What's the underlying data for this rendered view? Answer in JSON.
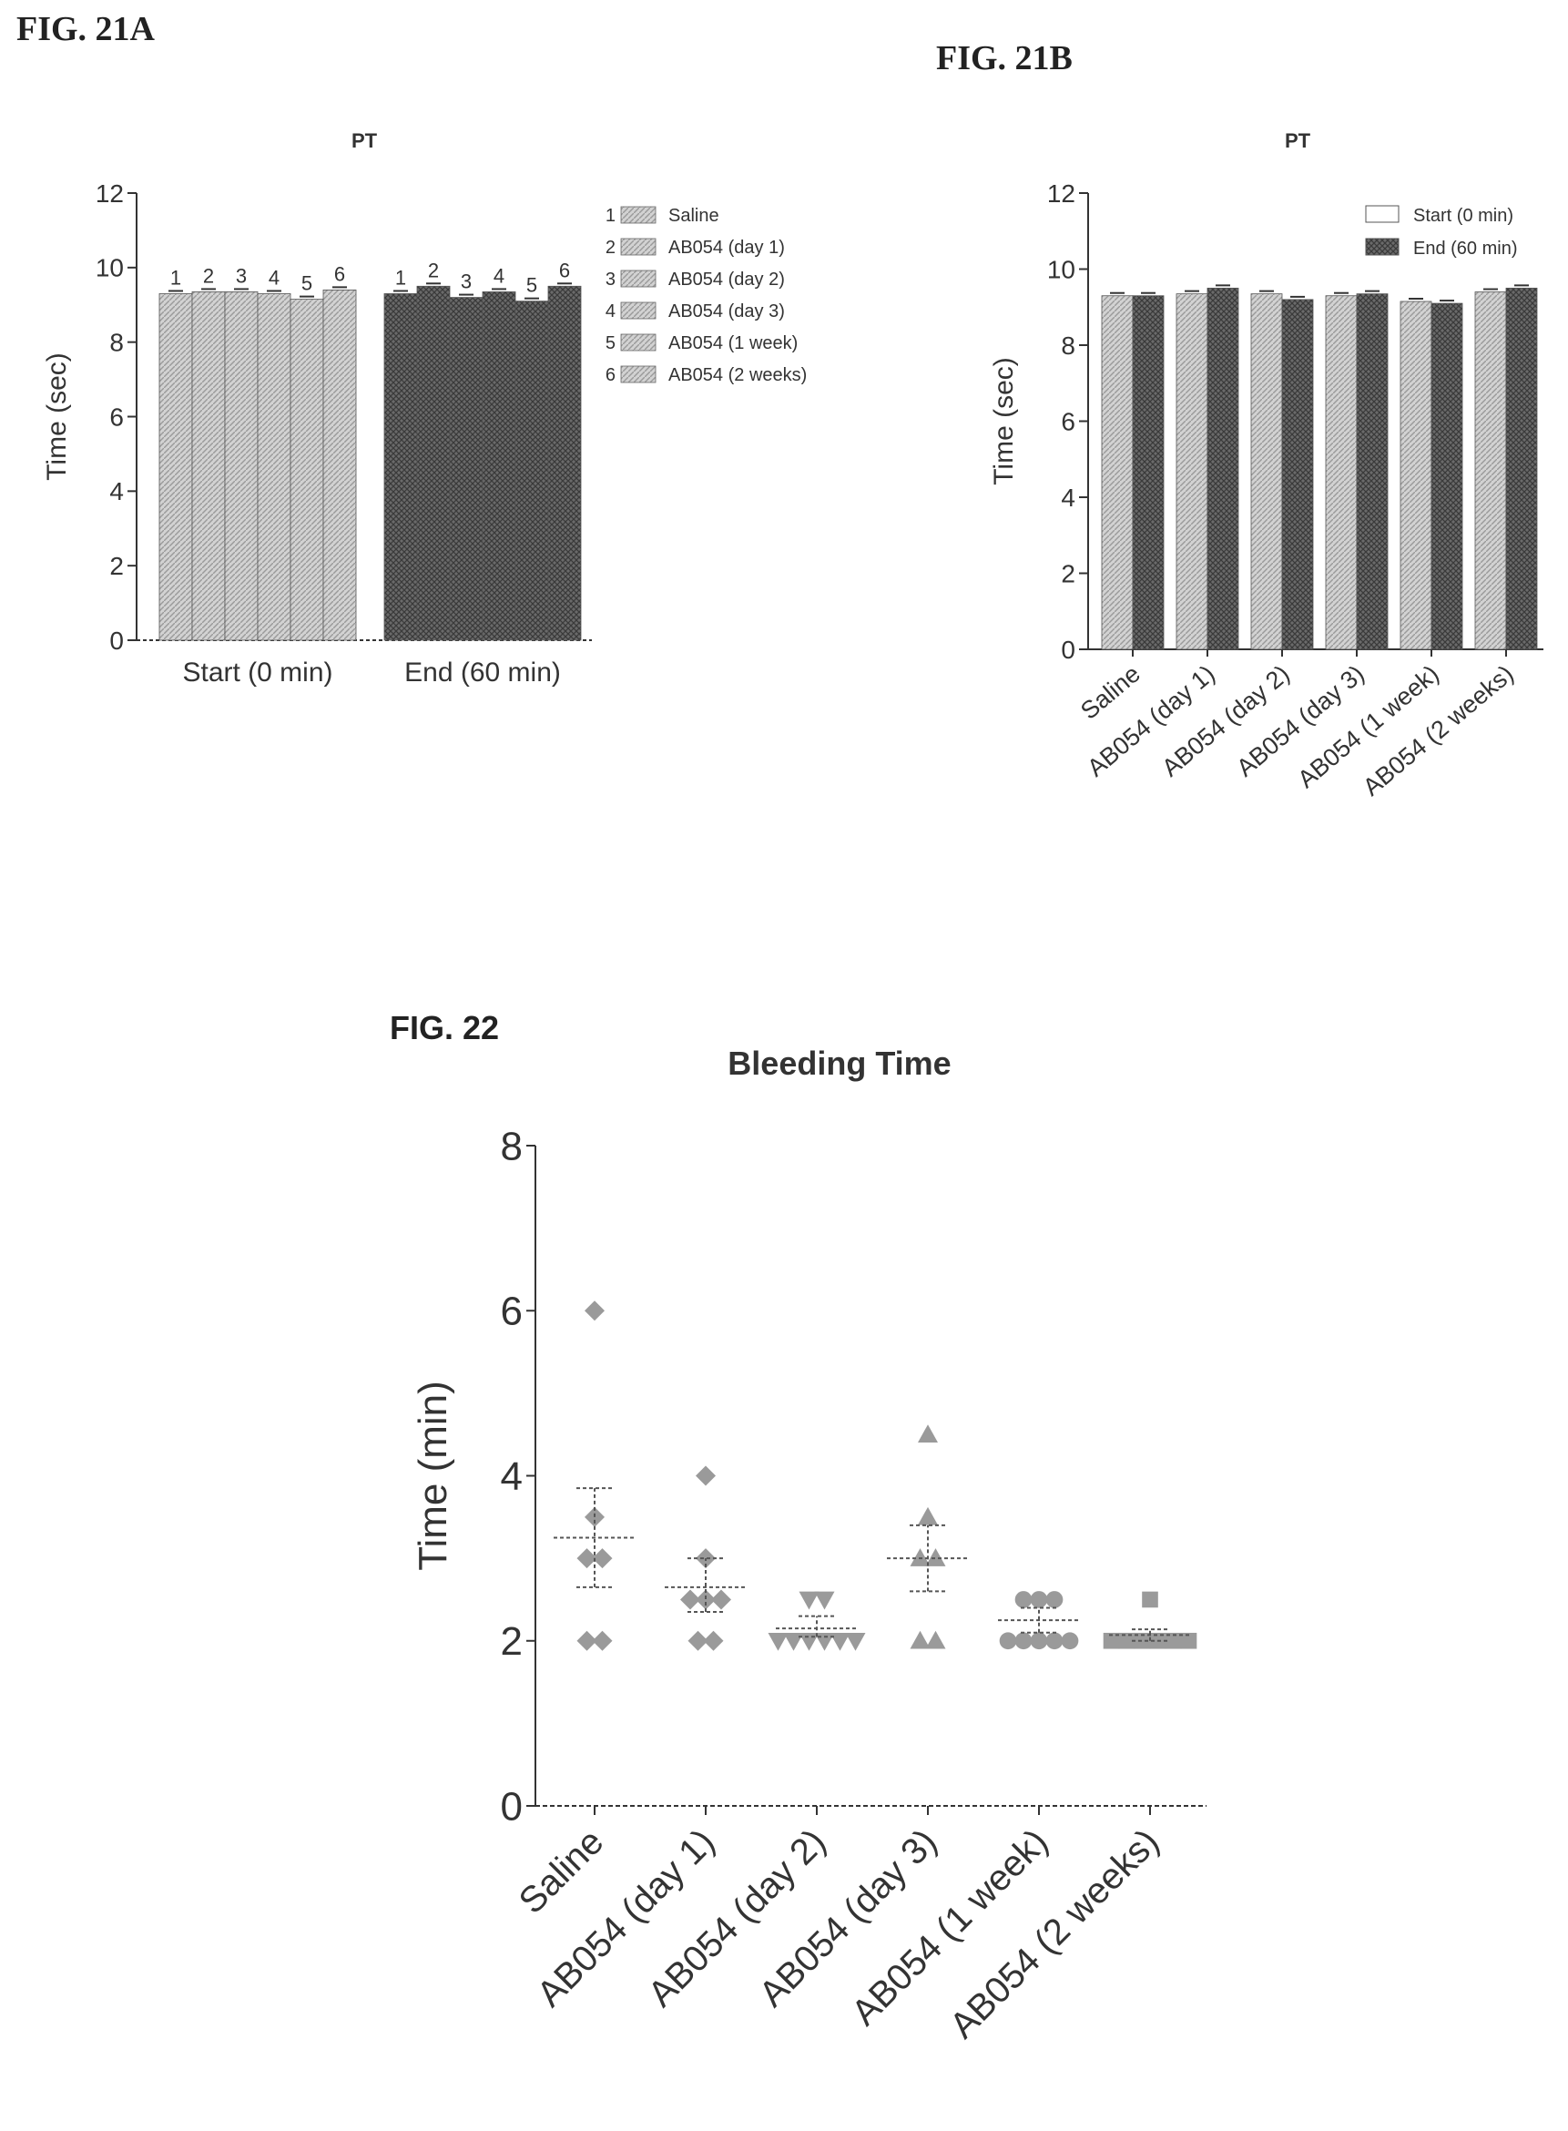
{
  "figures": {
    "fig21a": "FIG. 21A",
    "fig21b": "FIG. 21B",
    "fig22": "FIG. 22"
  },
  "colors": {
    "start_fill": "#c9c9c9",
    "end_fill": "#5c5c5c",
    "points": "#9a9a9a",
    "axis": "#333333"
  },
  "chart_data": [
    {
      "id": "fig21a",
      "type": "bar",
      "title": "PT",
      "ylabel": "Time (sec)",
      "ylim": [
        0,
        12
      ],
      "yticks": [
        0,
        2,
        4,
        6,
        8,
        10,
        12
      ],
      "groups": [
        "Start (0 min)",
        "End (60 min)"
      ],
      "bar_labels": [
        "1",
        "2",
        "3",
        "4",
        "5",
        "6"
      ],
      "series": [
        {
          "name": "Saline",
          "values": [
            9.3,
            9.3
          ]
        },
        {
          "name": "AB054 (day 1)",
          "values": [
            9.35,
            9.5
          ]
        },
        {
          "name": "AB054 (day 2)",
          "values": [
            9.35,
            9.2
          ]
        },
        {
          "name": "AB054 (day 3)",
          "values": [
            9.3,
            9.35
          ]
        },
        {
          "name": "AB054 (1 week)",
          "values": [
            9.15,
            9.1
          ]
        },
        {
          "name": "AB054 (2 weeks)",
          "values": [
            9.4,
            9.5
          ]
        }
      ],
      "legend": {
        "position": "right",
        "entries": [
          {
            "num": "1",
            "label": "Saline"
          },
          {
            "num": "2",
            "label": "AB054 (day 1)"
          },
          {
            "num": "3",
            "label": "AB054 (day 2)"
          },
          {
            "num": "4",
            "label": "AB054 (day 3)"
          },
          {
            "num": "5",
            "label": "AB054 (1 week)"
          },
          {
            "num": "6",
            "label": "AB054 (2 weeks)"
          }
        ]
      }
    },
    {
      "id": "fig21b",
      "type": "bar",
      "title": "PT",
      "ylabel": "Time (sec)",
      "ylim": [
        0,
        12
      ],
      "yticks": [
        0,
        2,
        4,
        6,
        8,
        10,
        12
      ],
      "categories": [
        "Saline",
        "AB054 (day 1)",
        "AB054 (day 2)",
        "AB054 (day 3)",
        "AB054 (1 week)",
        "AB054 (2 weeks)"
      ],
      "series": [
        {
          "name": "Start (0 min)",
          "values": [
            9.3,
            9.35,
            9.35,
            9.3,
            9.15,
            9.4
          ]
        },
        {
          "name": "End (60 min)",
          "values": [
            9.3,
            9.5,
            9.2,
            9.35,
            9.1,
            9.5
          ]
        }
      ],
      "legend": {
        "position": "top-right"
      }
    },
    {
      "id": "fig22",
      "type": "scatter",
      "title": "Bleeding Time",
      "ylabel": "Time (min)",
      "ylim": [
        0,
        8
      ],
      "yticks": [
        0,
        2,
        4,
        6,
        8
      ],
      "categories": [
        "Saline",
        "AB054 (day 1)",
        "AB054 (day 2)",
        "AB054 (day 3)",
        "AB054 (1 week)",
        "AB054 (2 weeks)"
      ],
      "groups": [
        {
          "name": "Saline",
          "marker": "diamond",
          "points": [
            6,
            3.5,
            3,
            3,
            2,
            2
          ],
          "mean": 3.25,
          "sem_low": 2.65,
          "sem_high": 3.85
        },
        {
          "name": "AB054 (day 1)",
          "marker": "diamond",
          "points": [
            4,
            3,
            2.5,
            2.5,
            2.5,
            2,
            2
          ],
          "mean": 2.65,
          "sem_low": 2.35,
          "sem_high": 3.0
        },
        {
          "name": "AB054 (day 2)",
          "marker": "triangle-down",
          "points": [
            2.5,
            2.5,
            2,
            2,
            2,
            2,
            2,
            2
          ],
          "mean": 2.15,
          "sem_low": 2.05,
          "sem_high": 2.3
        },
        {
          "name": "AB054 (day 3)",
          "marker": "triangle-up",
          "points": [
            4.5,
            3.5,
            3,
            3,
            2,
            2
          ],
          "mean": 3.0,
          "sem_low": 2.6,
          "sem_high": 3.4
        },
        {
          "name": "AB054 (1 week)",
          "marker": "circle",
          "points": [
            2.5,
            2.5,
            2.5,
            2,
            2,
            2,
            2,
            2
          ],
          "mean": 2.25,
          "sem_low": 2.1,
          "sem_high": 2.4
        },
        {
          "name": "AB054 (2 weeks)",
          "marker": "square",
          "points": [
            2.5,
            2,
            2,
            2,
            2,
            2,
            2
          ],
          "mean": 2.07,
          "sem_low": 2.0,
          "sem_high": 2.14
        }
      ]
    }
  ]
}
